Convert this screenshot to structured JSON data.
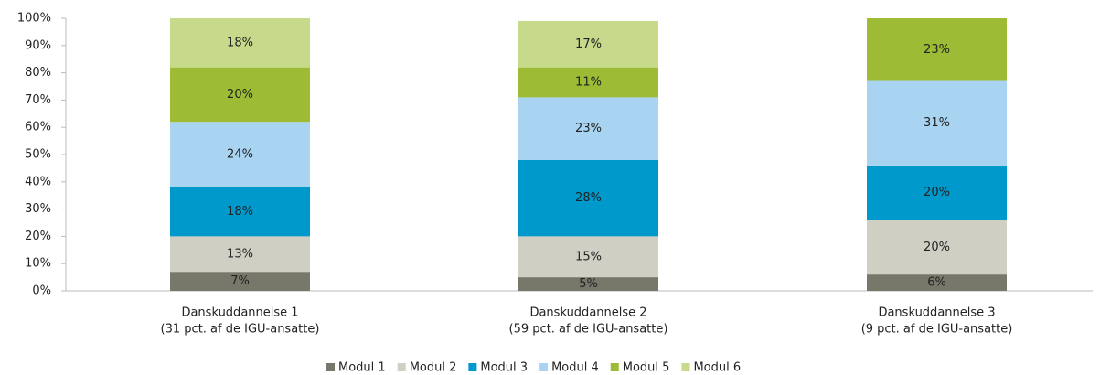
{
  "chart_data": {
    "type": "stacked-bar",
    "categories": [
      [
        "Danskuddannelse 1",
        "(31 pct. af de IGU-ansatte)"
      ],
      [
        "Danskuddannelse 2",
        "(59 pct. af de IGU-ansatte)"
      ],
      [
        "Danskuddannelse 3",
        "(9 pct. af de IGU-ansatte)"
      ]
    ],
    "series": [
      {
        "name": "Modul 1",
        "color": "#77786a",
        "values": [
          7,
          5,
          6
        ],
        "value_labels": [
          "7%",
          "5%",
          "6%"
        ]
      },
      {
        "name": "Modul 2",
        "color": "#d0cfc4",
        "values": [
          13,
          15,
          20
        ],
        "value_labels": [
          "13%",
          "15%",
          "20%"
        ]
      },
      {
        "name": "Modul 3",
        "color": "#0099cc",
        "values": [
          18,
          28,
          20
        ],
        "value_labels": [
          "18%",
          "28%",
          "20%"
        ]
      },
      {
        "name": "Modul 4",
        "color": "#a8d4f2",
        "values": [
          24,
          23,
          31
        ],
        "value_labels": [
          "24%",
          "23%",
          "31%"
        ]
      },
      {
        "name": "Modul 5",
        "color": "#9dbb34",
        "values": [
          20,
          11,
          23
        ],
        "value_labels": [
          "20%",
          "11%",
          "23%"
        ]
      },
      {
        "name": "Modul 6",
        "color": "#c7d98a",
        "values": [
          18,
          17,
          null
        ],
        "value_labels": [
          "18%",
          "17%",
          null
        ]
      }
    ],
    "ylim": [
      0,
      100
    ],
    "yticks": [
      {
        "value": 0,
        "label": "0%"
      },
      {
        "value": 10,
        "label": "10%"
      },
      {
        "value": 20,
        "label": "20%"
      },
      {
        "value": 30,
        "label": "30%"
      },
      {
        "value": 40,
        "label": "40%"
      },
      {
        "value": 50,
        "label": "50%"
      },
      {
        "value": 60,
        "label": "60%"
      },
      {
        "value": 70,
        "label": "70%"
      },
      {
        "value": 80,
        "label": "80%"
      },
      {
        "value": 90,
        "label": "90%"
      },
      {
        "value": 100,
        "label": "100%"
      }
    ],
    "legend": "bottom"
  }
}
